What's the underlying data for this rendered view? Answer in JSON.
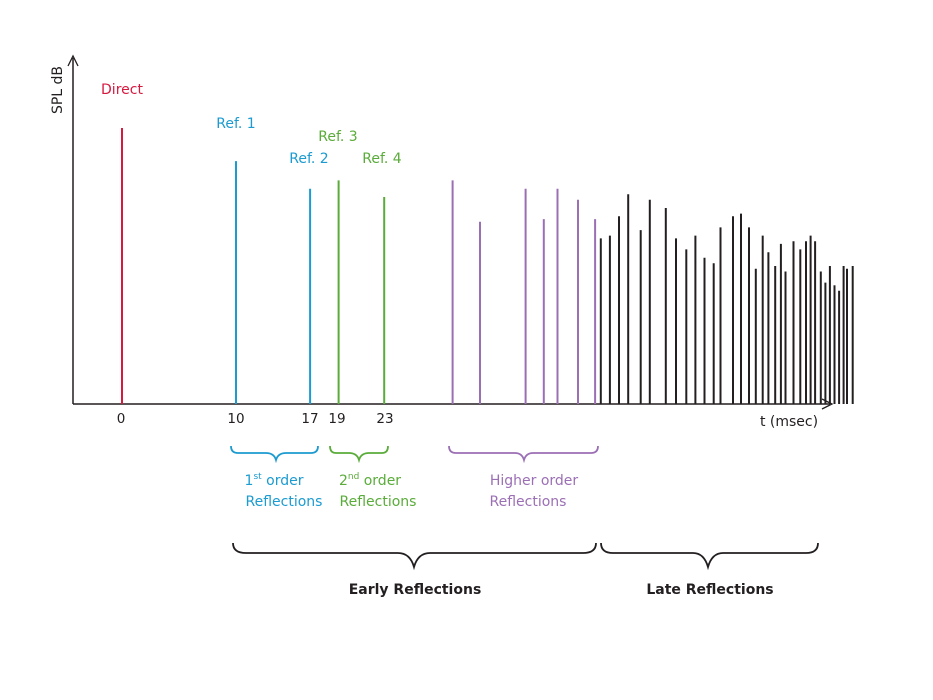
{
  "colors": {
    "direct": "#d7193f",
    "first_order": "#1b9bd0",
    "second_order": "#5aac3a",
    "higher_order": "#9b6fb4",
    "late": "#231f20",
    "axis": "#231f20"
  },
  "axes": {
    "y_label": "SPL dB",
    "x_label": "t (msec)"
  },
  "ticks": [
    "0",
    "10",
    "17",
    "19",
    "23"
  ],
  "peak_labels": {
    "direct": "Direct",
    "ref1": "Ref. 1",
    "ref2": "Ref. 2",
    "ref3": "Ref. 3",
    "ref4": "Ref. 4"
  },
  "groups": {
    "first": {
      "line1_main": "1",
      "line1_sup": "st",
      "line1_rest": " order",
      "line2": "Reflections"
    },
    "second": {
      "line1_main": "2",
      "line1_sup": "nd",
      "line1_rest": " order",
      "line2": "Reflections"
    },
    "higher": {
      "line1": "Higher order",
      "line2": "Reflections"
    }
  },
  "sections": {
    "early": "Early Reflections",
    "late": "Late Reflections"
  },
  "chart_data": {
    "type": "bar",
    "title": "",
    "xlabel": "t (msec)",
    "ylabel": "SPL dB",
    "series": [
      {
        "name": "Direct",
        "x": [
          0
        ],
        "values": [
          100
        ]
      },
      {
        "name": "1st order",
        "x": [
          10,
          16.5
        ],
        "values": [
          88,
          78
        ]
      },
      {
        "name": "2nd order",
        "x": [
          19,
          23
        ],
        "values": [
          81,
          75
        ]
      },
      {
        "name": "Higher order",
        "x": [
          29,
          31.4,
          35.4,
          37,
          38.2,
          40,
          41.5
        ],
        "values": [
          81,
          66,
          78,
          67,
          78,
          74,
          67
        ]
      },
      {
        "name": "Late",
        "x": [
          42,
          42.8,
          43.6,
          44.4,
          45.5,
          46.3,
          47.7,
          48.6,
          49.5,
          50.3,
          51.1,
          51.9,
          52.5,
          53.6,
          54.3,
          55,
          55.6,
          56.2,
          56.7,
          57.3,
          57.8,
          58.2,
          58.9,
          59.5,
          60,
          60.4,
          60.8,
          61.3,
          61.7,
          62.1,
          62.5,
          62.9,
          63.3,
          63.6,
          64.1
        ],
        "values": [
          60,
          61,
          68,
          76,
          63,
          74,
          71,
          60,
          56,
          61,
          53,
          51,
          64,
          68,
          69,
          64,
          49,
          61,
          55,
          50,
          58,
          48,
          59,
          56,
          59,
          61,
          59,
          48,
          44,
          50,
          43,
          41,
          50,
          49,
          50
        ]
      }
    ]
  }
}
